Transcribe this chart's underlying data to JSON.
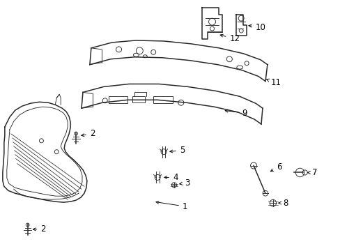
{
  "background_color": "#ffffff",
  "line_color": "#2a2a2a",
  "figsize": [
    4.89,
    3.6
  ],
  "dpi": 100,
  "lw_main": 1.1,
  "lw_thin": 0.65,
  "lw_thick": 1.4
}
